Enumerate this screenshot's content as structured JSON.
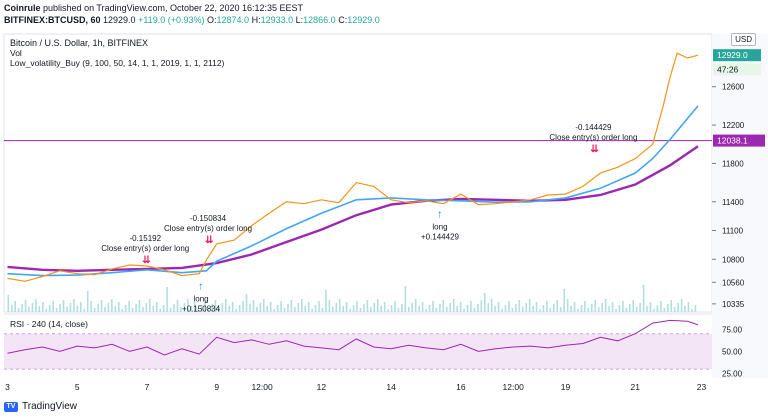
{
  "header": {
    "publisher": "Coinrule",
    "published_text": "published on TradingView.com, October 22, 2020 16:12:35 EEST",
    "symbol": "BITFINEX:BTCUSD, 60",
    "change": "+119.0 (+0.93%)",
    "ohlc": [
      {
        "k": "O:",
        "v": "12874.0"
      },
      {
        "k": "H:",
        "v": "12933.0"
      },
      {
        "k": "L:",
        "v": "12866.0"
      },
      {
        "k": "C:",
        "v": "12929.0"
      }
    ],
    "last": "12929.0"
  },
  "footer": {
    "brand": "TradingView",
    "logo_text": "TV"
  },
  "colors": {
    "price_line": "#f7931a",
    "ema_fast": "#42a5f5",
    "ema_slow": "#9c27b0",
    "hline": "#9c27b0",
    "rsi": "#9c27b0",
    "rsi_fill": "#f3e5f5",
    "volume": "#b2dfdb",
    "up": "#26a69a",
    "down": "#ef5350",
    "signal_close": "#e91e63",
    "signal_long": "#2196f3"
  },
  "chart_data": {
    "type": "line",
    "title": "Bitcoin / U.S. Dollar, 1h, BITFINEX",
    "legend_lines": [
      "Vol",
      "Low_volatility_Buy (9, 100, 50, 14, 1, 1, 2019, 1, 1, 2112)"
    ],
    "currency_label": "USD",
    "x_tick_labels": [
      "3",
      "5",
      "7",
      "9",
      "12:00",
      "12",
      "14",
      "16",
      "12:00",
      "19",
      "21",
      "23"
    ],
    "y_ticks": [
      10335,
      10560,
      10800,
      11100,
      11400,
      11800,
      12200,
      12600
    ],
    "y_range": [
      10250,
      13150
    ],
    "series": [
      {
        "name": "BTCUSD",
        "x": [
          3,
          3.5,
          4,
          4.5,
          5,
          5.5,
          6,
          6.5,
          7,
          7.5,
          8,
          8.5,
          8.7,
          9,
          9.5,
          10,
          10.5,
          11,
          11.5,
          12,
          12.5,
          13,
          13.5,
          14,
          14.5,
          15,
          15.5,
          16,
          16.5,
          17,
          17.5,
          18,
          18.5,
          19,
          19.5,
          20,
          20.5,
          21,
          21.5,
          21.8,
          22,
          22.2,
          22.5,
          22.8
        ],
        "values": [
          10600,
          10570,
          10620,
          10680,
          10650,
          10640,
          10700,
          10740,
          10730,
          10690,
          10630,
          10650,
          10790,
          10960,
          11000,
          11150,
          11280,
          11400,
          11380,
          11420,
          11390,
          11600,
          11560,
          11420,
          11390,
          11410,
          11380,
          11480,
          11370,
          11380,
          11400,
          11420,
          11470,
          11480,
          11560,
          11700,
          11760,
          11850,
          12000,
          12400,
          12700,
          12950,
          12900,
          12929
        ]
      },
      {
        "name": "EMA fast",
        "x": [
          3,
          4,
          5,
          6,
          7,
          8,
          8.7,
          9,
          10,
          11,
          12,
          13,
          14,
          15,
          16,
          17,
          18,
          19,
          20,
          21,
          21.5,
          22,
          22.8
        ],
        "values": [
          10650,
          10630,
          10635,
          10660,
          10690,
          10660,
          10680,
          10780,
          10940,
          11120,
          11280,
          11420,
          11440,
          11420,
          11410,
          11395,
          11400,
          11440,
          11540,
          11700,
          11850,
          12050,
          12400
        ]
      },
      {
        "name": "EMA slow",
        "x": [
          3,
          4,
          5,
          6,
          7,
          8,
          9,
          10,
          11,
          12,
          13,
          14,
          15,
          16,
          17,
          18,
          19,
          20,
          21,
          22,
          22.8
        ],
        "values": [
          10720,
          10690,
          10680,
          10690,
          10700,
          10710,
          10760,
          10850,
          10980,
          11110,
          11260,
          11370,
          11410,
          11430,
          11420,
          11410,
          11420,
          11470,
          11580,
          11780,
          11980
        ]
      }
    ],
    "hline": {
      "value": 12038.1,
      "label": "12038.1"
    },
    "price_labels": [
      {
        "value": 12929.0,
        "text": "12929.0"
      },
      {
        "value": 12780,
        "text": "47:26"
      }
    ],
    "signals": [
      {
        "type": "close",
        "x": 6.95,
        "y": 10740,
        "lines": [
          "-0.15192",
          "Close entry(s) order long"
        ]
      },
      {
        "type": "long",
        "x": 8.55,
        "y": 10630,
        "lines": [
          "long",
          "+0.150834"
        ]
      },
      {
        "type": "close",
        "x": 8.75,
        "y": 10950,
        "lines": [
          "-0.150834",
          "Close entry(s) order long"
        ]
      },
      {
        "type": "long",
        "x": 15.4,
        "y": 11380,
        "lines": [
          "long",
          "+0.144429"
        ]
      },
      {
        "type": "close",
        "x": 19.8,
        "y": 11900,
        "lines": [
          "-0.144429",
          "Close entry(s) order long"
        ]
      }
    ],
    "volume_label": "Vol",
    "rsi": {
      "label": "RSI · 240 (14, close)",
      "ticks": [
        25,
        50,
        75
      ],
      "tick_labels": [
        "25.00",
        "50.00",
        "75.00"
      ],
      "upper_band": 70,
      "lower_band": 30,
      "range": [
        20,
        90
      ],
      "x": [
        3,
        3.5,
        4,
        4.5,
        5,
        5.5,
        6,
        6.5,
        7,
        7.5,
        8,
        8.5,
        9,
        9.5,
        10,
        10.5,
        11,
        11.5,
        12,
        12.5,
        13,
        13.5,
        14,
        14.5,
        15,
        15.5,
        16,
        16.5,
        17,
        17.5,
        18,
        18.5,
        19,
        19.5,
        20,
        20.5,
        21,
        21.5,
        22,
        22.5,
        22.8
      ],
      "values": [
        48,
        52,
        55,
        50,
        56,
        54,
        58,
        50,
        55,
        46,
        53,
        47,
        66,
        60,
        63,
        58,
        62,
        56,
        54,
        52,
        64,
        55,
        53,
        57,
        54,
        52,
        58,
        50,
        53,
        55,
        56,
        54,
        57,
        59,
        66,
        62,
        70,
        82,
        85,
        84,
        80
      ]
    }
  }
}
